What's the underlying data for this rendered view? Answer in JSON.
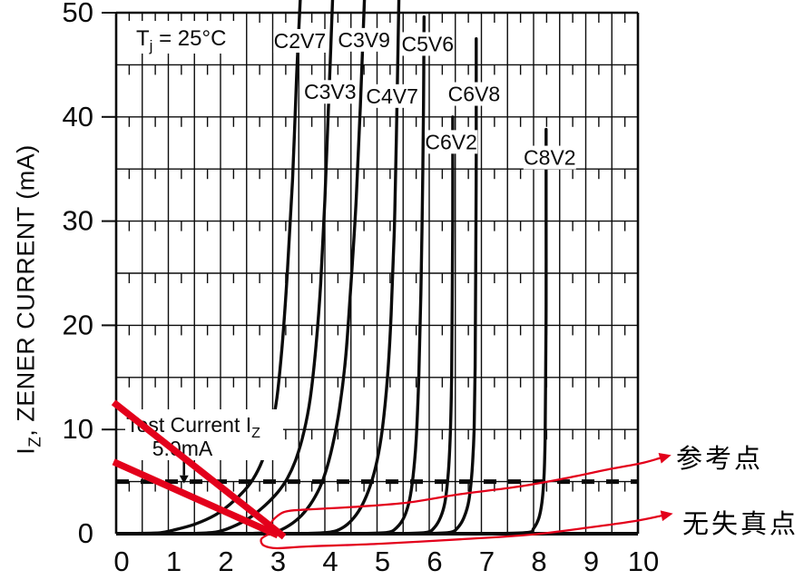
{
  "title_note": {
    "pre": "T",
    "sub": "j",
    "post": " = 25°C"
  },
  "y_axis": {
    "title": {
      "pre": "I",
      "sub": "Z",
      "post": ", ZENER CURRENT (mA)"
    },
    "ticks": [
      "0",
      "10",
      "20",
      "30",
      "40",
      "50"
    ]
  },
  "x_axis": {
    "ticks": [
      "0",
      "1",
      "2",
      "3",
      "4",
      "5",
      "6",
      "7",
      "8",
      "9",
      "10"
    ]
  },
  "test_current": {
    "line1_pre": "Test Current I",
    "line1_sub": "Z",
    "line2": "5.0mA",
    "level_mA": 5
  },
  "annotations": {
    "reference_point": "参考点",
    "no_distortion_point": "无失真点"
  },
  "colors": {
    "red": "#e3001b",
    "black": "#0b0b0b",
    "white": "#ffffff"
  },
  "chart_data": {
    "type": "line",
    "title": "Tj = 25°C",
    "ylabel": "IZ, ZENER CURRENT (mA)",
    "xlabel": "",
    "xlim": [
      0,
      10
    ],
    "ylim": [
      0,
      50
    ],
    "x_major_step": 0.5,
    "x_minor_step": 0.25,
    "y_major_step": 5,
    "grid": true,
    "dashed_line_mA": 5,
    "x_tick_values": [
      0,
      1,
      2,
      3,
      4,
      5,
      6,
      7,
      8,
      9,
      10
    ],
    "y_tick_values": [
      0,
      10,
      20,
      30,
      40,
      50
    ],
    "series": [
      {
        "name": "C2V7",
        "label_at": [
          3.52,
          47.3
        ],
        "points": [
          [
            0.35,
            0.02
          ],
          [
            0.85,
            0.1
          ],
          [
            1.1,
            0.35
          ],
          [
            1.5,
            0.9
          ],
          [
            1.9,
            1.8
          ],
          [
            2.2,
            2.9
          ],
          [
            2.45,
            4.1
          ],
          [
            2.62,
            5.2
          ],
          [
            2.8,
            7
          ],
          [
            2.95,
            9.5
          ],
          [
            3.08,
            13
          ],
          [
            3.18,
            18
          ],
          [
            3.28,
            25
          ],
          [
            3.38,
            34
          ],
          [
            3.46,
            44
          ],
          [
            3.53,
            51.5
          ]
        ]
      },
      {
        "name": "C3V3",
        "label_at": [
          4.1,
          42.4
        ],
        "points": [
          [
            1.45,
            0.02
          ],
          [
            1.9,
            0.15
          ],
          [
            2.2,
            0.6
          ],
          [
            2.55,
            1.5
          ],
          [
            2.85,
            2.7
          ],
          [
            3.1,
            4
          ],
          [
            3.28,
            5.3
          ],
          [
            3.45,
            7.2
          ],
          [
            3.6,
            9.8
          ],
          [
            3.72,
            13
          ],
          [
            3.83,
            18
          ],
          [
            3.92,
            24
          ],
          [
            4.0,
            32
          ],
          [
            4.07,
            41
          ],
          [
            4.15,
            51.5
          ]
        ]
      },
      {
        "name": "C3V9",
        "label_at": [
          4.75,
          47.4
        ],
        "points": [
          [
            2.55,
            0.02
          ],
          [
            3.0,
            0.15
          ],
          [
            3.25,
            0.6
          ],
          [
            3.5,
            1.5
          ],
          [
            3.72,
            2.8
          ],
          [
            3.9,
            4.4
          ],
          [
            4.02,
            6
          ],
          [
            4.15,
            8.5
          ],
          [
            4.28,
            12
          ],
          [
            4.4,
            17
          ],
          [
            4.5,
            24
          ],
          [
            4.6,
            32
          ],
          [
            4.68,
            41
          ],
          [
            4.76,
            51.5
          ]
        ]
      },
      {
        "name": "C4V7",
        "label_at": [
          5.29,
          42.0
        ],
        "points": [
          [
            3.6,
            0.02
          ],
          [
            4.1,
            0.15
          ],
          [
            4.35,
            0.6
          ],
          [
            4.55,
            1.5
          ],
          [
            4.72,
            2.8
          ],
          [
            4.87,
            4.6
          ],
          [
            5.0,
            7
          ],
          [
            5.1,
            10
          ],
          [
            5.2,
            15
          ],
          [
            5.27,
            21
          ],
          [
            5.33,
            29
          ],
          [
            5.37,
            38
          ],
          [
            5.42,
            51.5
          ]
        ]
      },
      {
        "name": "C5V6",
        "label_at": [
          5.97,
          47.0
        ],
        "points": [
          [
            4.7,
            0.02
          ],
          [
            5.2,
            0.12
          ],
          [
            5.38,
            0.6
          ],
          [
            5.52,
            1.6
          ],
          [
            5.62,
            3.2
          ],
          [
            5.69,
            5.5
          ],
          [
            5.75,
            9
          ],
          [
            5.8,
            15
          ],
          [
            5.84,
            23
          ],
          [
            5.87,
            32
          ],
          [
            5.89,
            41
          ],
          [
            5.9,
            49.6
          ]
        ]
      },
      {
        "name": "C6V2",
        "label_at": [
          6.42,
          37.6
        ],
        "points": [
          [
            5.5,
            0.02
          ],
          [
            5.95,
            0.12
          ],
          [
            6.1,
            0.6
          ],
          [
            6.22,
            1.6
          ],
          [
            6.3,
            3
          ],
          [
            6.36,
            5.5
          ],
          [
            6.4,
            9
          ],
          [
            6.43,
            15
          ],
          [
            6.44,
            22
          ],
          [
            6.45,
            30
          ],
          [
            6.45,
            40
          ]
        ]
      },
      {
        "name": "C6V8",
        "label_at": [
          6.86,
          42.2
        ],
        "points": [
          [
            5.95,
            0.02
          ],
          [
            6.4,
            0.12
          ],
          [
            6.55,
            0.6
          ],
          [
            6.67,
            1.6
          ],
          [
            6.76,
            3.2
          ],
          [
            6.82,
            6
          ],
          [
            6.86,
            10
          ],
          [
            6.88,
            16
          ],
          [
            6.89,
            25
          ],
          [
            6.9,
            36
          ],
          [
            6.9,
            47.5
          ]
        ]
      },
      {
        "name": "C8V2",
        "label_at": [
          8.31,
          36.1
        ],
        "points": [
          [
            7.3,
            0.02
          ],
          [
            7.9,
            0.12
          ],
          [
            8.0,
            0.5
          ],
          [
            8.1,
            1.5
          ],
          [
            8.16,
            3
          ],
          [
            8.2,
            5.5
          ],
          [
            8.22,
            9
          ],
          [
            8.23,
            14
          ],
          [
            8.24,
            22
          ],
          [
            8.24,
            31
          ],
          [
            8.24,
            38.8
          ]
        ]
      }
    ],
    "load_lines": [
      {
        "name": "load-line-steep",
        "points": [
          [
            -0.05,
            12.6
          ],
          [
            3.22,
            -0.3
          ]
        ]
      },
      {
        "name": "load-line-shallow",
        "points": [
          [
            -0.05,
            6.9
          ],
          [
            3.1,
            -0.15
          ]
        ]
      }
    ],
    "annotation_arrows": [
      {
        "name": "reference-point-arrow",
        "points": [
          [
            3.05,
            0.2
          ],
          [
            2.97,
            0.96
          ],
          [
            3.1,
            1.74
          ],
          [
            3.3,
            2.18
          ],
          [
            3.77,
            2.35
          ],
          [
            4.64,
            2.6
          ],
          [
            5.6,
            3.0
          ],
          [
            6.6,
            3.8
          ],
          [
            7.69,
            4.5
          ],
          [
            8.64,
            5.35
          ],
          [
            9.46,
            6.2
          ],
          [
            10.05,
            6.75
          ],
          [
            10.42,
            7.25
          ]
        ]
      },
      {
        "name": "no-distortion-arrow",
        "points": [
          [
            2.92,
            -0.05
          ],
          [
            2.78,
            -0.52
          ],
          [
            2.83,
            -1.13
          ],
          [
            3.08,
            -1.39
          ],
          [
            3.69,
            -1.22
          ],
          [
            5.08,
            -0.96
          ],
          [
            6.64,
            -0.52
          ],
          [
            7.95,
            -0.09
          ],
          [
            9.08,
            0.61
          ],
          [
            9.95,
            1.22
          ],
          [
            10.45,
            1.72
          ]
        ]
      }
    ],
    "test_current_arrow": {
      "x_V": 1.3,
      "from_mA": 7.2,
      "to_mA": 5.6
    }
  }
}
